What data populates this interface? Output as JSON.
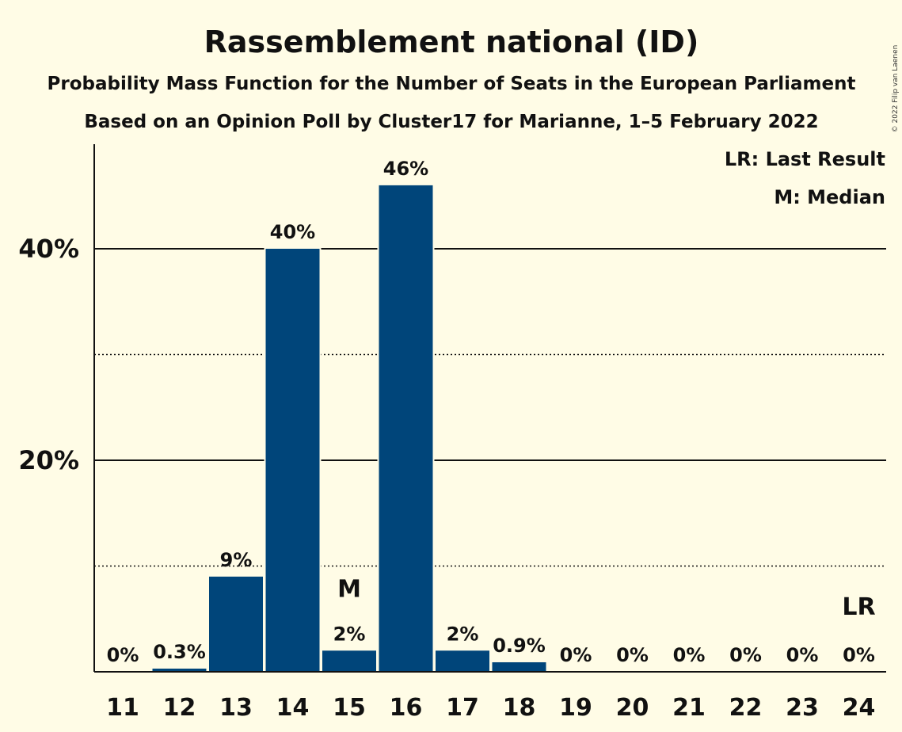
{
  "chart_data": {
    "type": "bar",
    "title": "Rassemblement national (ID)",
    "subtitle": "Probability Mass Function for the Number of Seats in the European Parliament",
    "subtitle2": "Based on an Opinion Poll by Cluster17 for Marianne, 1–5 February 2022",
    "copyright": "© 2022 Filip van Laenen",
    "legend": [
      "LR: Last Result",
      "M: Median"
    ],
    "legend_position": "top-right",
    "categories": [
      "11",
      "12",
      "13",
      "14",
      "15",
      "16",
      "17",
      "18",
      "19",
      "20",
      "21",
      "22",
      "23",
      "24"
    ],
    "values": [
      0,
      0.3,
      9,
      40,
      2,
      46,
      2,
      0.9,
      0,
      0,
      0,
      0,
      0,
      0
    ],
    "data_labels": [
      "0%",
      "0.3%",
      "9%",
      "40%",
      "2%",
      "46%",
      "2%",
      "0.9%",
      "0%",
      "0%",
      "0%",
      "0%",
      "0%",
      "0%"
    ],
    "median_category": "15",
    "median_marker": "M",
    "last_result_category": "24",
    "last_result_marker": "LR",
    "ylim": [
      0,
      50
    ],
    "yticks": [
      20,
      40
    ],
    "ytick_labels": [
      "20%",
      "40%"
    ],
    "minor_gridlines": [
      10,
      30
    ],
    "bar_color": "#00457a",
    "background": "#fffce6",
    "grid": true
  }
}
